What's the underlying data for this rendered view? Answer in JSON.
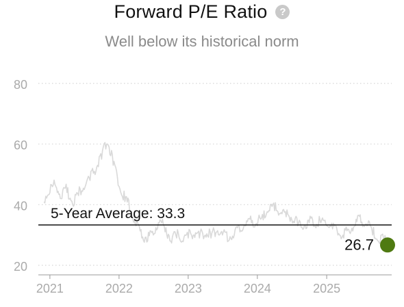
{
  "header": {
    "title": "Forward P/E Ratio",
    "help_icon": "question-circle-icon",
    "help_glyph": "?",
    "subtitle": "Well below its historical norm"
  },
  "chart_data": {
    "type": "line",
    "title": "Forward P/E Ratio",
    "subtitle": "Well below its historical norm",
    "xlabel": "",
    "ylabel": "",
    "ylim": [
      20,
      80
    ],
    "xlim": [
      "2020-11-01",
      "2025-12-10"
    ],
    "y_ticks": [
      "20",
      "40",
      "60",
      "80"
    ],
    "x_ticks": [
      "2021",
      "2022",
      "2023",
      "2024",
      "2025"
    ],
    "grid": "horizontal dotted",
    "series": [
      {
        "color": "#d9d9d9",
        "points": [
          [
            "2020-12-01",
            41
          ],
          [
            "2021-01-01",
            44
          ],
          [
            "2021-02-01",
            46
          ],
          [
            "2021-03-01",
            42
          ],
          [
            "2021-04-01",
            44
          ],
          [
            "2021-05-01",
            40
          ],
          [
            "2021-06-01",
            43
          ],
          [
            "2021-07-01",
            45
          ],
          [
            "2021-08-01",
            48
          ],
          [
            "2021-09-01",
            51
          ],
          [
            "2021-10-01",
            55
          ],
          [
            "2021-11-01",
            60
          ],
          [
            "2021-12-01",
            53
          ],
          [
            "2022-01-01",
            46
          ],
          [
            "2022-02-01",
            41
          ],
          [
            "2022-03-01",
            38
          ],
          [
            "2022-04-01",
            33
          ],
          [
            "2022-05-01",
            29
          ],
          [
            "2022-06-01",
            28
          ],
          [
            "2022-07-01",
            30
          ],
          [
            "2022-08-01",
            34
          ],
          [
            "2022-09-01",
            31
          ],
          [
            "2022-10-01",
            28
          ],
          [
            "2022-11-01",
            29
          ],
          [
            "2022-12-01",
            28
          ],
          [
            "2023-01-01",
            29
          ],
          [
            "2023-02-01",
            30
          ],
          [
            "2023-03-01",
            29
          ],
          [
            "2023-04-01",
            30
          ],
          [
            "2023-05-01",
            29
          ],
          [
            "2023-06-01",
            31
          ],
          [
            "2023-07-01",
            30
          ],
          [
            "2023-08-01",
            28
          ],
          [
            "2023-09-01",
            30
          ],
          [
            "2023-10-01",
            31
          ],
          [
            "2023-11-01",
            33
          ],
          [
            "2023-12-01",
            34
          ],
          [
            "2024-01-01",
            33
          ],
          [
            "2024-02-01",
            35
          ],
          [
            "2024-03-01",
            38
          ],
          [
            "2024-04-01",
            38
          ],
          [
            "2024-05-01",
            37
          ],
          [
            "2024-06-01",
            36
          ],
          [
            "2024-07-01",
            35
          ],
          [
            "2024-08-01",
            33
          ],
          [
            "2024-09-01",
            32
          ],
          [
            "2024-10-01",
            34
          ],
          [
            "2024-11-01",
            33
          ],
          [
            "2024-12-01",
            34
          ],
          [
            "2025-01-01",
            33
          ],
          [
            "2025-02-01",
            32
          ],
          [
            "2025-03-01",
            30
          ],
          [
            "2025-04-01",
            29
          ],
          [
            "2025-05-01",
            31
          ],
          [
            "2025-06-01",
            33
          ],
          [
            "2025-07-01",
            34
          ],
          [
            "2025-08-01",
            33
          ],
          [
            "2025-09-01",
            30
          ],
          [
            "2025-10-01",
            28
          ],
          [
            "2025-11-01",
            27.5
          ],
          [
            "2025-11-25",
            26.7
          ]
        ]
      }
    ],
    "reference_line": {
      "label": "5-Year Average: 33.3",
      "value": 33.3,
      "color": "#111111"
    },
    "current_point": {
      "date": "2025-11-25",
      "value": 26.7,
      "label": "26.7",
      "color": "#4f7a12"
    }
  }
}
